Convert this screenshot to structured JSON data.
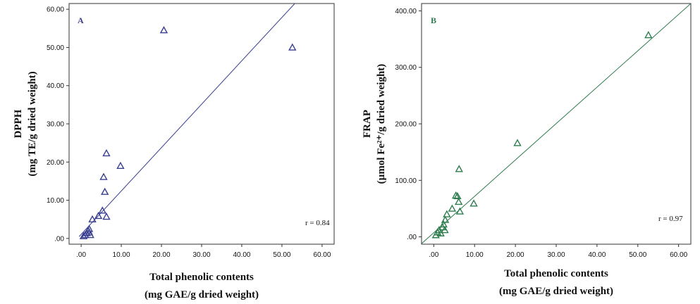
{
  "chart_data": [
    {
      "type": "scatter",
      "panel_label": "A",
      "ylabel_line1": "DPPH",
      "ylabel_line2": "(mg TE/g dried weight)",
      "xlabel_line1": "Total phenolic contents",
      "xlabel_line2": "(mg GAE/g dried weight)",
      "xlim": [
        -3,
        63
      ],
      "ylim": [
        -1.5,
        61.5
      ],
      "xticks": [
        ".00",
        "10.00",
        "20.00",
        "30.00",
        "40.00",
        "50.00",
        "60.00"
      ],
      "xtick_values": [
        0,
        10,
        20,
        30,
        40,
        50,
        60
      ],
      "yticks": [
        ".00",
        "10.00",
        "20.00",
        "30.00",
        "40.00",
        "50.00",
        "60.00"
      ],
      "ytick_values": [
        0,
        10,
        20,
        30,
        40,
        50,
        60
      ],
      "annotation": "r = 0.84",
      "color": "#3a3f8f",
      "fit_line": [
        [
          -0.5,
          0.5
        ],
        [
          53.2,
          61.5
        ]
      ],
      "points": [
        {
          "x": 0.6,
          "y": 0.6
        },
        {
          "x": 1.0,
          "y": 0.9
        },
        {
          "x": 1.4,
          "y": 1.4
        },
        {
          "x": 1.8,
          "y": 2.0
        },
        {
          "x": 2.0,
          "y": 2.5
        },
        {
          "x": 2.3,
          "y": 0.9
        },
        {
          "x": 2.0,
          "y": 1.6
        },
        {
          "x": 2.8,
          "y": 5.0
        },
        {
          "x": 4.3,
          "y": 5.9
        },
        {
          "x": 5.3,
          "y": 7.3
        },
        {
          "x": 6.3,
          "y": 5.7
        },
        {
          "x": 5.9,
          "y": 12.2
        },
        {
          "x": 5.6,
          "y": 16.1
        },
        {
          "x": 6.3,
          "y": 22.3
        },
        {
          "x": 9.8,
          "y": 19.0
        },
        {
          "x": 20.6,
          "y": 54.5
        },
        {
          "x": 52.6,
          "y": 50.0
        }
      ]
    },
    {
      "type": "scatter",
      "panel_label": "B",
      "ylabel_line1": "FRAP",
      "ylabel_line2": "(µmol Fe²⁺/g dried weight)",
      "xlabel_line1": "Total phenolic contents",
      "xlabel_line2": "(mg GAE/g dried weight)",
      "xlim": [
        -3,
        63
      ],
      "ylim": [
        -13,
        413
      ],
      "xticks": [
        ".00",
        "10.00",
        "20.00",
        "30.00",
        "40.00",
        "50.00",
        "60.00"
      ],
      "xtick_values": [
        0,
        10,
        20,
        30,
        40,
        50,
        60
      ],
      "yticks": [
        ".00",
        "100.00",
        "200.00",
        "300.00",
        "400.00"
      ],
      "ytick_values": [
        0,
        100,
        200,
        300,
        400
      ],
      "annotation": "r = 0.97",
      "color": "#2e7d4f",
      "fit_line": [
        [
          -3,
          -12
        ],
        [
          63,
          413
        ]
      ],
      "points": [
        {
          "x": 0.5,
          "y": 3
        },
        {
          "x": 0.9,
          "y": 8
        },
        {
          "x": 1.3,
          "y": 12
        },
        {
          "x": 1.7,
          "y": 6
        },
        {
          "x": 2.1,
          "y": 17
        },
        {
          "x": 2.4,
          "y": 22
        },
        {
          "x": 2.7,
          "y": 12
        },
        {
          "x": 2.8,
          "y": 30
        },
        {
          "x": 3.2,
          "y": 40
        },
        {
          "x": 4.5,
          "y": 50
        },
        {
          "x": 5.4,
          "y": 73
        },
        {
          "x": 5.8,
          "y": 72
        },
        {
          "x": 6.1,
          "y": 62
        },
        {
          "x": 6.4,
          "y": 45
        },
        {
          "x": 6.2,
          "y": 120
        },
        {
          "x": 9.8,
          "y": 59
        },
        {
          "x": 20.5,
          "y": 166
        },
        {
          "x": 52.6,
          "y": 357
        }
      ]
    }
  ]
}
